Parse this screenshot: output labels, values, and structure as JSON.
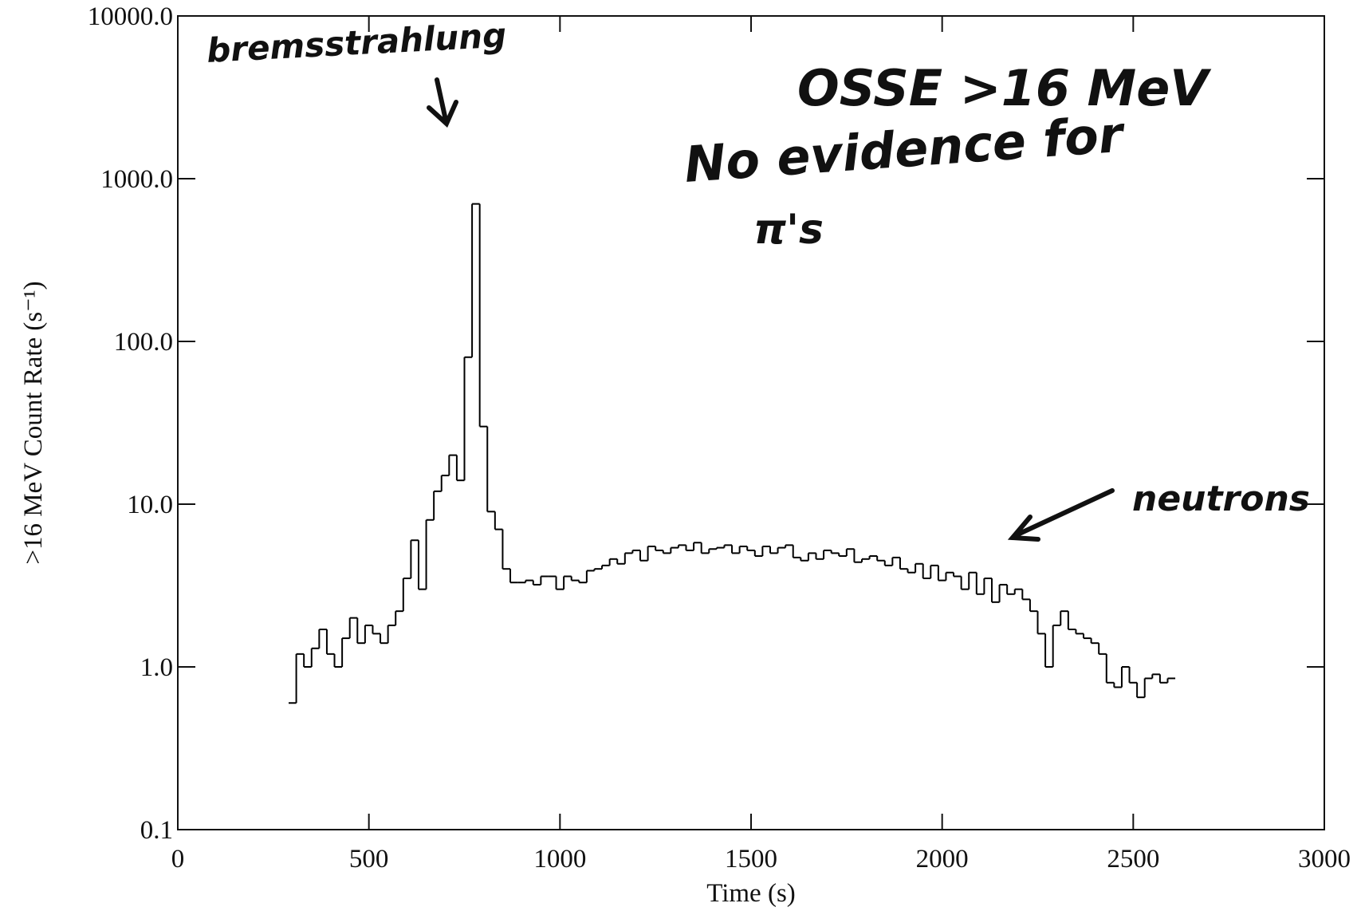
{
  "chart_data": {
    "type": "histogram",
    "xlabel": "Time (s)",
    "ylabel": ">16 MeV Count Rate (s⁻¹)",
    "annotations": [
      "bremsstrahlung",
      "OSSE >16 MeV",
      "No evidence for",
      "π's",
      "neutrons"
    ],
    "bins": [
      290,
      310,
      330,
      350,
      370,
      390,
      410,
      430,
      450,
      470,
      490,
      510,
      530,
      550,
      570,
      590,
      610,
      630,
      650,
      670,
      690,
      710,
      730,
      750,
      770,
      790,
      810,
      830,
      850,
      870,
      890,
      910,
      930,
      950,
      970,
      990,
      1010,
      1030,
      1050,
      1070,
      1090,
      1110,
      1130,
      1150,
      1170,
      1190,
      1210,
      1230,
      1250,
      1270,
      1290,
      1310,
      1330,
      1350,
      1370,
      1390,
      1410,
      1430,
      1450,
      1470,
      1490,
      1510,
      1530,
      1550,
      1570,
      1590,
      1610,
      1630,
      1650,
      1670,
      1690,
      1710,
      1730,
      1750,
      1770,
      1790,
      1810,
      1830,
      1850,
      1870,
      1890,
      1910,
      1930,
      1950,
      1970,
      1990,
      2010,
      2030,
      2050,
      2070,
      2090,
      2110,
      2130,
      2150,
      2170,
      2190,
      2210,
      2230,
      2250,
      2270,
      2290,
      2310,
      2330,
      2350,
      2370,
      2390,
      2410,
      2430,
      2450,
      2470,
      2490,
      2510,
      2530,
      2550,
      2570,
      2590,
      2610
    ],
    "counts": [
      0.6,
      1.2,
      1.0,
      1.3,
      1.7,
      1.2,
      1.0,
      1.5,
      2.0,
      1.4,
      1.8,
      1.6,
      1.4,
      1.8,
      2.2,
      3.5,
      6.0,
      3.0,
      8.0,
      12,
      15,
      20,
      14,
      80,
      700,
      30,
      9,
      7,
      4,
      3.3,
      3.3,
      3.4,
      3.2,
      3.6,
      3.6,
      3.0,
      3.6,
      3.4,
      3.3,
      3.9,
      4.0,
      4.2,
      4.6,
      4.3,
      5.0,
      5.2,
      4.5,
      5.5,
      5.2,
      5.0,
      5.4,
      5.6,
      5.2,
      5.8,
      5.0,
      5.3,
      5.4,
      5.6,
      5.0,
      5.5,
      5.2,
      4.8,
      5.5,
      5.0,
      5.4,
      5.6,
      4.7,
      4.5,
      5.0,
      4.6,
      5.2,
      5.0,
      4.8,
      5.3,
      4.4,
      4.6,
      4.8,
      4.5,
      4.2,
      4.7,
      4.0,
      3.8,
      4.3,
      3.5,
      4.2,
      3.4,
      3.8,
      3.6,
      3.0,
      3.8,
      2.8,
      3.5,
      2.5,
      3.2,
      2.8,
      3.0,
      2.6,
      2.2,
      1.6,
      1.0,
      1.8,
      2.2,
      1.7,
      1.6,
      1.5,
      1.4,
      1.2,
      0.8,
      0.75,
      1.0,
      0.8,
      0.65,
      0.85,
      0.9,
      0.8,
      0.85
    ],
    "color": "#000000",
    "xlim": [
      0,
      3000
    ],
    "xticks": [
      0,
      500,
      1000,
      1500,
      2000,
      2500,
      3000
    ],
    "ylim": [
      0.1,
      10000
    ],
    "ylog": true,
    "yticks": [
      0.1,
      {
        "value": 1,
        "label": "1.0"
      },
      {
        "value": 10,
        "label": "10.0"
      },
      {
        "value": 100,
        "label": "100.0"
      },
      {
        "value": 1000,
        "label": "1000.0"
      },
      {
        "value": 10000,
        "label": "10000.0"
      }
    ]
  }
}
